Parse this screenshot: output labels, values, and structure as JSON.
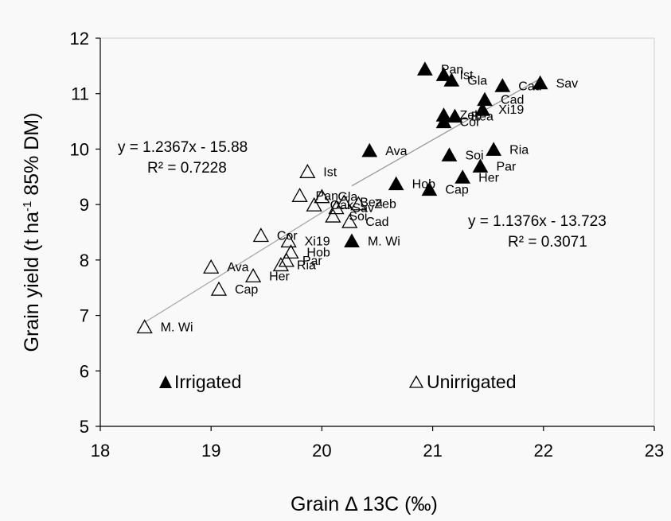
{
  "chart_data": {
    "type": "scatter",
    "xlabel_prefix": "Grain ",
    "xlabel_delta": "Δ",
    "xlabel_suffix": " 13C (‰)",
    "ylabel_main": "Grain yield (t ha",
    "ylabel_sup": "-1",
    "ylabel_tail": " 85% DM)",
    "xlim": [
      18,
      23
    ],
    "ylim": [
      5,
      12
    ],
    "xticks": [
      18,
      19,
      20,
      21,
      22,
      23
    ],
    "yticks": [
      5,
      6,
      7,
      8,
      9,
      10,
      11,
      12
    ],
    "grid": false,
    "series": [
      {
        "name": "Irrigated",
        "marker": "filled-triangle",
        "color": "#000000",
        "points": [
          {
            "x": 20.93,
            "y": 11.45,
            "label": "Pan"
          },
          {
            "x": 21.1,
            "y": 11.35,
            "label": "Ist"
          },
          {
            "x": 21.17,
            "y": 11.25,
            "label": "Gla"
          },
          {
            "x": 21.63,
            "y": 11.15,
            "label": "Cad"
          },
          {
            "x": 21.97,
            "y": 11.2,
            "label": "Sav"
          },
          {
            "x": 21.47,
            "y": 10.9,
            "label": "Cad"
          },
          {
            "x": 21.1,
            "y": 10.62,
            "label": "Zeb"
          },
          {
            "x": 21.2,
            "y": 10.6,
            "label": "Bea"
          },
          {
            "x": 21.45,
            "y": 10.72,
            "label": "Xi19"
          },
          {
            "x": 21.1,
            "y": 10.5,
            "label": "Cor"
          },
          {
            "x": 20.43,
            "y": 9.98,
            "label": "Ava"
          },
          {
            "x": 21.15,
            "y": 9.9,
            "label": "Soi"
          },
          {
            "x": 21.55,
            "y": 10.0,
            "label": "Ria"
          },
          {
            "x": 21.43,
            "y": 9.7,
            "label": "Par"
          },
          {
            "x": 21.27,
            "y": 9.5,
            "label": "Her"
          },
          {
            "x": 20.67,
            "y": 9.38,
            "label": "Hob"
          },
          {
            "x": 20.97,
            "y": 9.28,
            "label": "Cap"
          },
          {
            "x": 20.27,
            "y": 8.35,
            "label": "M. Wi"
          }
        ]
      },
      {
        "name": "Unirrigated",
        "marker": "open-triangle",
        "color": "#000000",
        "points": [
          {
            "x": 19.87,
            "y": 9.6,
            "label": "Ist"
          },
          {
            "x": 19.8,
            "y": 9.17,
            "label": "Pan"
          },
          {
            "x": 20.0,
            "y": 9.15,
            "label": "Gla"
          },
          {
            "x": 19.93,
            "y": 9.0,
            "label": "Oak"
          },
          {
            "x": 20.2,
            "y": 9.05,
            "label": "Bea"
          },
          {
            "x": 20.33,
            "y": 9.02,
            "label": "Zeb"
          },
          {
            "x": 20.13,
            "y": 8.95,
            "label": "Sav"
          },
          {
            "x": 20.1,
            "y": 8.8,
            "label": "Soi"
          },
          {
            "x": 20.25,
            "y": 8.7,
            "label": "Cad"
          },
          {
            "x": 19.45,
            "y": 8.45,
            "label": "Cor"
          },
          {
            "x": 19.7,
            "y": 8.35,
            "label": "Xi19"
          },
          {
            "x": 19.72,
            "y": 8.15,
            "label": "Hob"
          },
          {
            "x": 19.68,
            "y": 8.0,
            "label": "Par"
          },
          {
            "x": 19.63,
            "y": 7.92,
            "label": "Ria"
          },
          {
            "x": 19.38,
            "y": 7.72,
            "label": "Her"
          },
          {
            "x": 19.0,
            "y": 7.88,
            "label": "Ava"
          },
          {
            "x": 19.07,
            "y": 7.48,
            "label": "Cap"
          },
          {
            "x": 18.4,
            "y": 6.8,
            "label": "M. Wi"
          }
        ]
      }
    ],
    "trendlines": [
      {
        "series": "Unirrigated",
        "slope": 1.2367,
        "intercept": -15.88,
        "x_range": [
          18.4,
          20.25
        ],
        "color": "#aaaaaa"
      },
      {
        "series": "Irrigated",
        "slope": 1.1376,
        "intercept": -13.723,
        "x_range": [
          20.27,
          21.97
        ],
        "color": "#999999"
      }
    ],
    "annotations": {
      "eq_unirrigated": "y = 1.2367x - 15.88",
      "r2_unirrigated": "R² = 0.7228",
      "eq_irrigated": "y = 1.1376x - 13.723",
      "r2_irrigated": "R² = 0.3071"
    },
    "legend": {
      "irrigated_label": "Irrigated",
      "unirrigated_label": "Unirrigated",
      "placement": "bottom-inside"
    }
  }
}
